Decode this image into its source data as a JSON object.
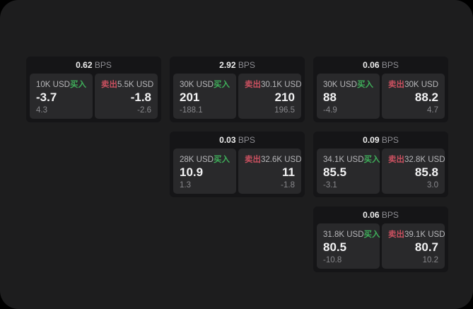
{
  "labels": {
    "bps_suffix": "BPS",
    "buy": "买入",
    "sell": "卖出"
  },
  "colors": {
    "page_background": "#1d1d1e",
    "card_background": "#151517",
    "tile_background": "#29292b",
    "buy_green": "#3fae5a",
    "sell_red": "#c8505f",
    "main_text": "#f3f3f4",
    "muted_text": "#88888c"
  },
  "cards": [
    {
      "col": 1,
      "row": 1,
      "bps": "0.62",
      "buy": {
        "amount": "10K USD",
        "value": "-3.7",
        "sub": "4.3"
      },
      "sell": {
        "amount": "5.5K USD",
        "value": "-1.8",
        "sub": "-2.6"
      }
    },
    {
      "col": 2,
      "row": 1,
      "bps": "2.92",
      "buy": {
        "amount": "30K USD",
        "value": "201",
        "sub": "-188.1"
      },
      "sell": {
        "amount": "30.1K USD",
        "value": "210",
        "sub": "196.5"
      }
    },
    {
      "col": 3,
      "row": 1,
      "bps": "0.06",
      "buy": {
        "amount": "30K USD",
        "value": "88",
        "sub": "-4.9"
      },
      "sell": {
        "amount": "30K USD",
        "value": "88.2",
        "sub": "4.7"
      }
    },
    {
      "col": 2,
      "row": 2,
      "bps": "0.03",
      "buy": {
        "amount": "28K USD",
        "value": "10.9",
        "sub": "1.3"
      },
      "sell": {
        "amount": "32.6K USD",
        "value": "11",
        "sub": "-1.8"
      }
    },
    {
      "col": 3,
      "row": 2,
      "bps": "0.09",
      "buy": {
        "amount": "34.1K USD",
        "value": "85.5",
        "sub": "-3.1"
      },
      "sell": {
        "amount": "32.8K USD",
        "value": "85.8",
        "sub": "3.0"
      }
    },
    {
      "col": 3,
      "row": 3,
      "bps": "0.06",
      "buy": {
        "amount": "31.8K USD",
        "value": "80.5",
        "sub": "-10.8"
      },
      "sell": {
        "amount": "39.1K USD",
        "value": "80.7",
        "sub": "10.2"
      }
    }
  ]
}
